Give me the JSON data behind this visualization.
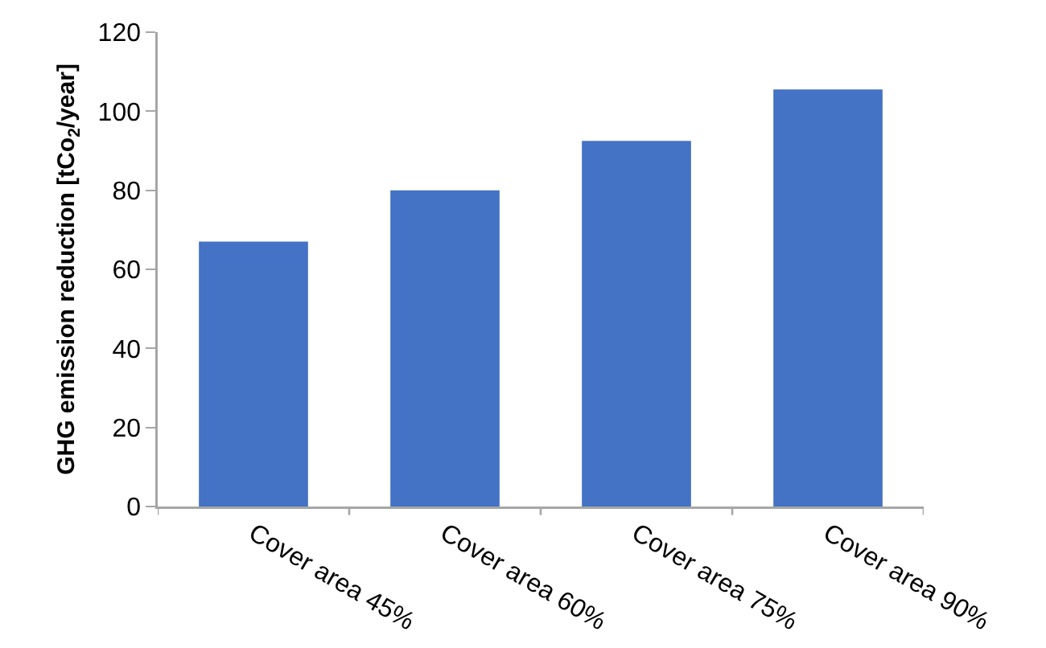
{
  "chart_data": {
    "type": "bar",
    "ylabel": "GHG emission reduction [tCo$_{2}$/year]",
    "categories": [
      "Cover area 45%",
      "Cover area 60%",
      "Cover area 75%",
      "Cover area 90%"
    ],
    "values": [
      67,
      80,
      92.5,
      105.5
    ],
    "color": "#4472c4",
    "ylim": [
      0,
      120
    ],
    "yticks": [
      0,
      20,
      40,
      60,
      80,
      100,
      120
    ],
    "grid": false,
    "legend": false
  }
}
